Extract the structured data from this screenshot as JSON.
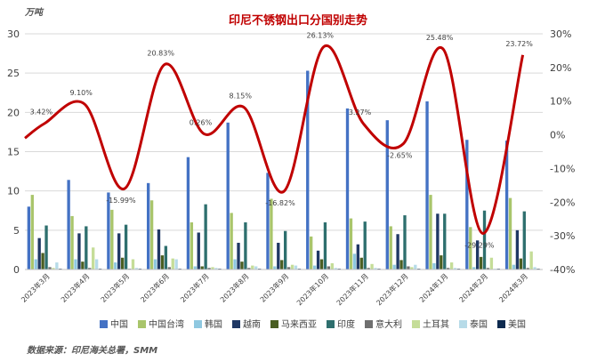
{
  "unit_label": "万吨",
  "source_text": "数据来源：印尼海关总署，SMM",
  "colors": {
    "line": "#c00000",
    "title": "#c00000"
  },
  "chart_data": {
    "type": "bar",
    "title": "印尼不锈钢出口分国别走势",
    "categories": [
      "2023年3月",
      "2023年4月",
      "2023年5月",
      "2023年6月",
      "2023年7月",
      "2023年8月",
      "2023年9月",
      "2023年10月",
      "2023年11月",
      "2023年12月",
      "2024年1月",
      "2024年2月",
      "2024年3月"
    ],
    "ylim": [
      0,
      30
    ],
    "yticks": [
      0,
      5,
      10,
      15,
      20,
      25,
      30
    ],
    "y2lim": [
      -40,
      30
    ],
    "y2ticks": [
      "-40%",
      "-30%",
      "-20%",
      "-10%",
      "0%",
      "10%",
      "20%",
      "30%"
    ],
    "series": [
      {
        "name": "中国",
        "color": "#4472c4",
        "values": [
          8.0,
          11.4,
          9.8,
          11.0,
          14.3,
          18.7,
          12.3,
          25.3,
          20.5,
          19.0,
          21.4,
          16.5,
          16.4
        ]
      },
      {
        "name": "中国台湾",
        "color": "#a9c56b",
        "values": [
          9.5,
          6.8,
          7.6,
          8.8,
          6.0,
          7.2,
          9.0,
          4.2,
          6.5,
          5.5,
          9.5,
          5.4,
          9.1
        ]
      },
      {
        "name": "韩国",
        "color": "#8fc8e0",
        "values": [
          1.3,
          1.3,
          0.9,
          1.3,
          0.4,
          1.3,
          0.4,
          0.5,
          2.0,
          0.6,
          0.8,
          0.3,
          0.6
        ]
      },
      {
        "name": "越南",
        "color": "#1f3864",
        "values": [
          4.0,
          4.6,
          4.6,
          5.1,
          4.7,
          3.4,
          3.4,
          2.4,
          3.2,
          4.5,
          7.1,
          3.7,
          5.0
        ]
      },
      {
        "name": "马来西亚",
        "color": "#4a5e22",
        "values": [
          2.1,
          1.0,
          1.5,
          1.8,
          0.4,
          1.0,
          1.2,
          1.3,
          1.5,
          1.2,
          1.8,
          1.6,
          1.4
        ]
      },
      {
        "name": "印度",
        "color": "#2e6f6e",
        "values": [
          5.6,
          5.5,
          5.7,
          3.0,
          8.3,
          6.0,
          4.9,
          6.0,
          6.1,
          6.9,
          7.1,
          7.5,
          7.4
        ]
      },
      {
        "name": "意大利",
        "color": "#6f6f6f",
        "values": [
          0.3,
          0.2,
          0.1,
          0.3,
          0.2,
          0.2,
          0.3,
          0.4,
          0.2,
          0.4,
          0.2,
          0.2,
          0.2
        ]
      },
      {
        "name": "土耳其",
        "color": "#c5dd98",
        "values": [
          0.2,
          2.8,
          1.3,
          1.4,
          0.3,
          0.5,
          0.6,
          0.8,
          0.7,
          0.3,
          0.9,
          1.5,
          2.3
        ]
      },
      {
        "name": "泰国",
        "color": "#b7dbe8",
        "values": [
          0.9,
          1.3,
          0.2,
          1.3,
          0.2,
          0.4,
          0.5,
          0.2,
          0.2,
          0.6,
          0.2,
          0.1,
          0.3
        ]
      },
      {
        "name": "美国",
        "color": "#0d2a4f",
        "values": [
          0.1,
          0.1,
          0.1,
          0.1,
          0.1,
          0.1,
          0.1,
          0.1,
          0.1,
          0.1,
          0.1,
          0.1,
          0.1
        ]
      }
    ],
    "line": {
      "name": "",
      "values": [
        3.42,
        9.1,
        -15.99,
        20.83,
        0.26,
        8.15,
        -16.82,
        26.13,
        3.27,
        -2.65,
        25.48,
        -29.29,
        23.72
      ],
      "labels": [
        "3.42%",
        "9.10%",
        "-15.99%",
        "20.83%",
        "0.26%",
        "8.15%",
        "-16.82%",
        "26.13%",
        "3.27%",
        "-2.65%",
        "25.48%",
        "-29.29%",
        "23.72%"
      ]
    },
    "legend_position": "bottom",
    "grid": true
  }
}
